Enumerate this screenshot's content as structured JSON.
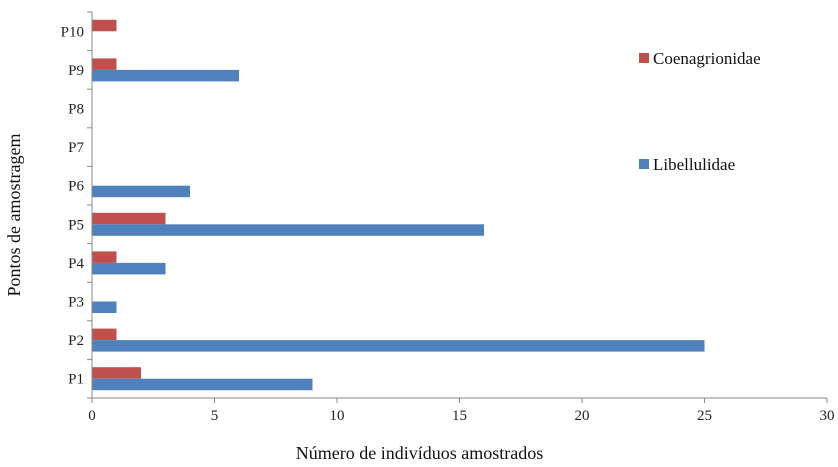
{
  "chart_data": {
    "type": "bar",
    "orientation": "horizontal",
    "categories": [
      "P1",
      "P2",
      "P3",
      "P4",
      "P5",
      "P6",
      "P7",
      "P8",
      "P9",
      "P10"
    ],
    "series": [
      {
        "name": "Coenagrionidae",
        "color": "#C0504D",
        "values": [
          2,
          1,
          0,
          1,
          3,
          0,
          0,
          0,
          1,
          1
        ]
      },
      {
        "name": "Libellulidae",
        "color": "#4F81BD",
        "values": [
          9,
          25,
          1,
          3,
          16,
          4,
          0,
          0,
          6,
          0
        ]
      }
    ],
    "xlabel": "Número de indivíduos amostrados",
    "ylabel": "Pontos de amostragem",
    "xlim": [
      0,
      30
    ],
    "xticks": [
      0,
      5,
      10,
      15,
      20,
      25,
      30
    ],
    "grid": false,
    "legend_position": "right"
  }
}
